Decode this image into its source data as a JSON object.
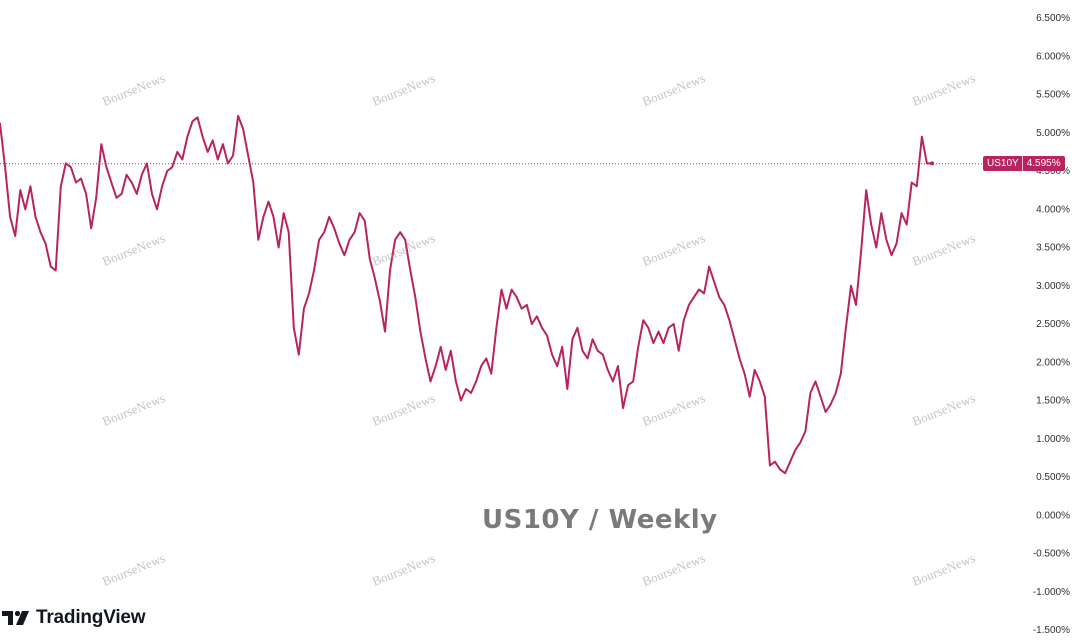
{
  "chart_data": {
    "type": "line",
    "title": "US10Y / Weekly",
    "symbol": "US10Y",
    "last_value_label": "4.595%",
    "last_value": 4.595,
    "ylim": [
      -1.5,
      6.5
    ],
    "yticks": [
      "6.500%",
      "6.000%",
      "5.500%",
      "5.000%",
      "4.500%",
      "4.000%",
      "3.500%",
      "3.000%",
      "2.500%",
      "2.000%",
      "1.500%",
      "1.000%",
      "0.500%",
      "0.000%",
      "-0.500%",
      "-1.000%",
      "-1.500%"
    ],
    "ytick_values": [
      6.5,
      6.0,
      5.5,
      5.0,
      4.5,
      4.0,
      3.5,
      3.0,
      2.5,
      2.0,
      1.5,
      1.0,
      0.5,
      0.0,
      -0.5,
      -1.0,
      -1.5
    ],
    "grid": false,
    "line_color": "#b8245f",
    "series": [
      {
        "values": [
          5.12,
          4.55,
          3.9,
          3.65,
          4.25,
          4.0,
          4.3,
          3.9,
          3.7,
          3.55,
          3.25,
          3.2,
          4.3,
          4.6,
          4.55,
          4.35,
          4.4,
          4.2,
          3.75,
          4.15,
          4.85,
          4.55,
          4.35,
          4.15,
          4.2,
          4.45,
          4.35,
          4.2,
          4.45,
          4.6,
          4.2,
          4.0,
          4.3,
          4.5,
          4.55,
          4.75,
          4.65,
          4.95,
          5.15,
          5.2,
          4.95,
          4.75,
          4.9,
          4.65,
          4.85,
          4.6,
          4.7,
          5.22,
          5.05,
          4.7,
          4.35,
          3.6,
          3.9,
          4.1,
          3.9,
          3.5,
          3.95,
          3.7,
          2.45,
          2.1,
          2.7,
          2.9,
          3.2,
          3.6,
          3.7,
          3.9,
          3.75,
          3.55,
          3.4,
          3.6,
          3.7,
          3.95,
          3.85,
          3.35,
          3.1,
          2.8,
          2.4,
          3.2,
          3.6,
          3.7,
          3.6,
          3.2,
          2.85,
          2.4,
          2.05,
          1.75,
          1.95,
          2.2,
          1.9,
          2.15,
          1.75,
          1.5,
          1.65,
          1.6,
          1.75,
          1.95,
          2.05,
          1.85,
          2.45,
          2.95,
          2.7,
          2.95,
          2.85,
          2.7,
          2.75,
          2.5,
          2.6,
          2.45,
          2.35,
          2.1,
          1.95,
          2.2,
          1.65,
          2.3,
          2.45,
          2.15,
          2.05,
          2.3,
          2.15,
          2.1,
          1.9,
          1.75,
          1.95,
          1.4,
          1.7,
          1.75,
          2.2,
          2.55,
          2.45,
          2.25,
          2.4,
          2.25,
          2.45,
          2.5,
          2.15,
          2.55,
          2.75,
          2.85,
          2.95,
          2.9,
          3.25,
          3.05,
          2.85,
          2.75,
          2.55,
          2.3,
          2.05,
          1.85,
          1.55,
          1.9,
          1.75,
          1.55,
          0.65,
          0.7,
          0.6,
          0.55,
          0.7,
          0.85,
          0.95,
          1.1,
          1.6,
          1.75,
          1.55,
          1.35,
          1.45,
          1.6,
          1.85,
          2.45,
          3.0,
          2.75,
          3.45,
          4.25,
          3.8,
          3.5,
          3.95,
          3.6,
          3.4,
          3.55,
          3.95,
          3.8,
          4.35,
          4.3,
          4.95,
          4.6,
          4.6
        ]
      }
    ]
  },
  "watermark_text": "BourseNews",
  "branding": {
    "logo_text": "TradingView"
  }
}
